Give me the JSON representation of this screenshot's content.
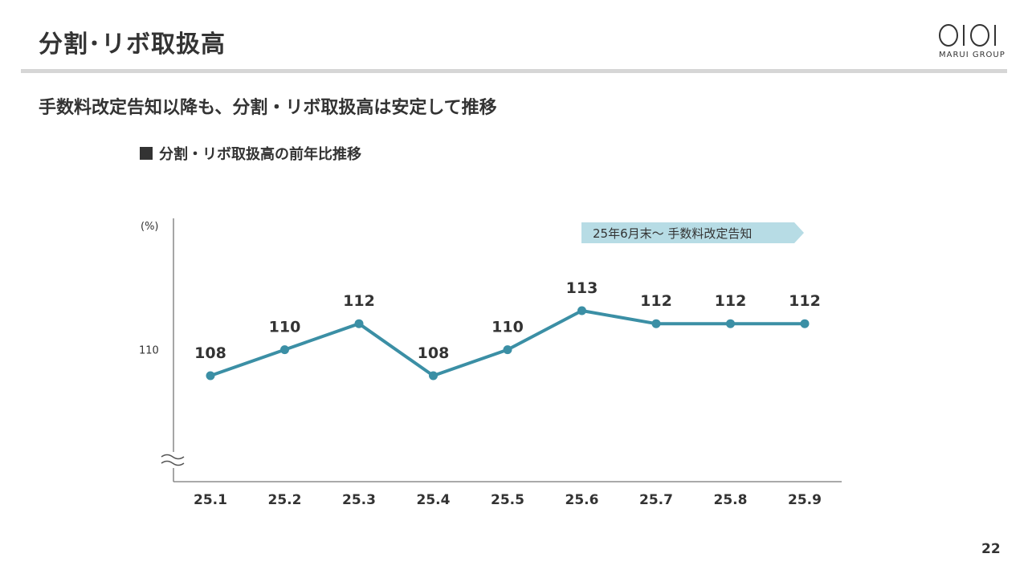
{
  "header": {
    "title": "分割･リボ取扱高",
    "logo_text": "MARUI GROUP"
  },
  "subtitle": "手数料改定告知以降も、分割・リボ取扱高は安定して推移",
  "chart_title": "分割・リボ取扱高の前年比推移",
  "colors": {
    "series": "#3b8fa5",
    "annotation_bg": "#b7dce5",
    "text": "#333333",
    "rule": "#d6d6d6"
  },
  "chart_data": {
    "type": "line",
    "categories": [
      "25.1",
      "25.2",
      "25.3",
      "25.4",
      "25.5",
      "25.6",
      "25.7",
      "25.8",
      "25.9"
    ],
    "values": [
      108,
      110,
      112,
      108,
      110,
      113,
      112,
      112,
      112
    ],
    "data_labels": [
      "108",
      "110",
      "112",
      "108",
      "110",
      "113",
      "112",
      "112",
      "112"
    ],
    "ylabel": "(%)",
    "y_ticks": [
      110
    ],
    "y_tick_labels": [
      "110"
    ],
    "ylim": [
      100,
      116
    ],
    "axis_break": true,
    "grid": false,
    "legend": "none",
    "annotation": {
      "text": "25年6月末～ 手数料改定告知",
      "from_category": "25.6"
    }
  },
  "page_number": "22"
}
